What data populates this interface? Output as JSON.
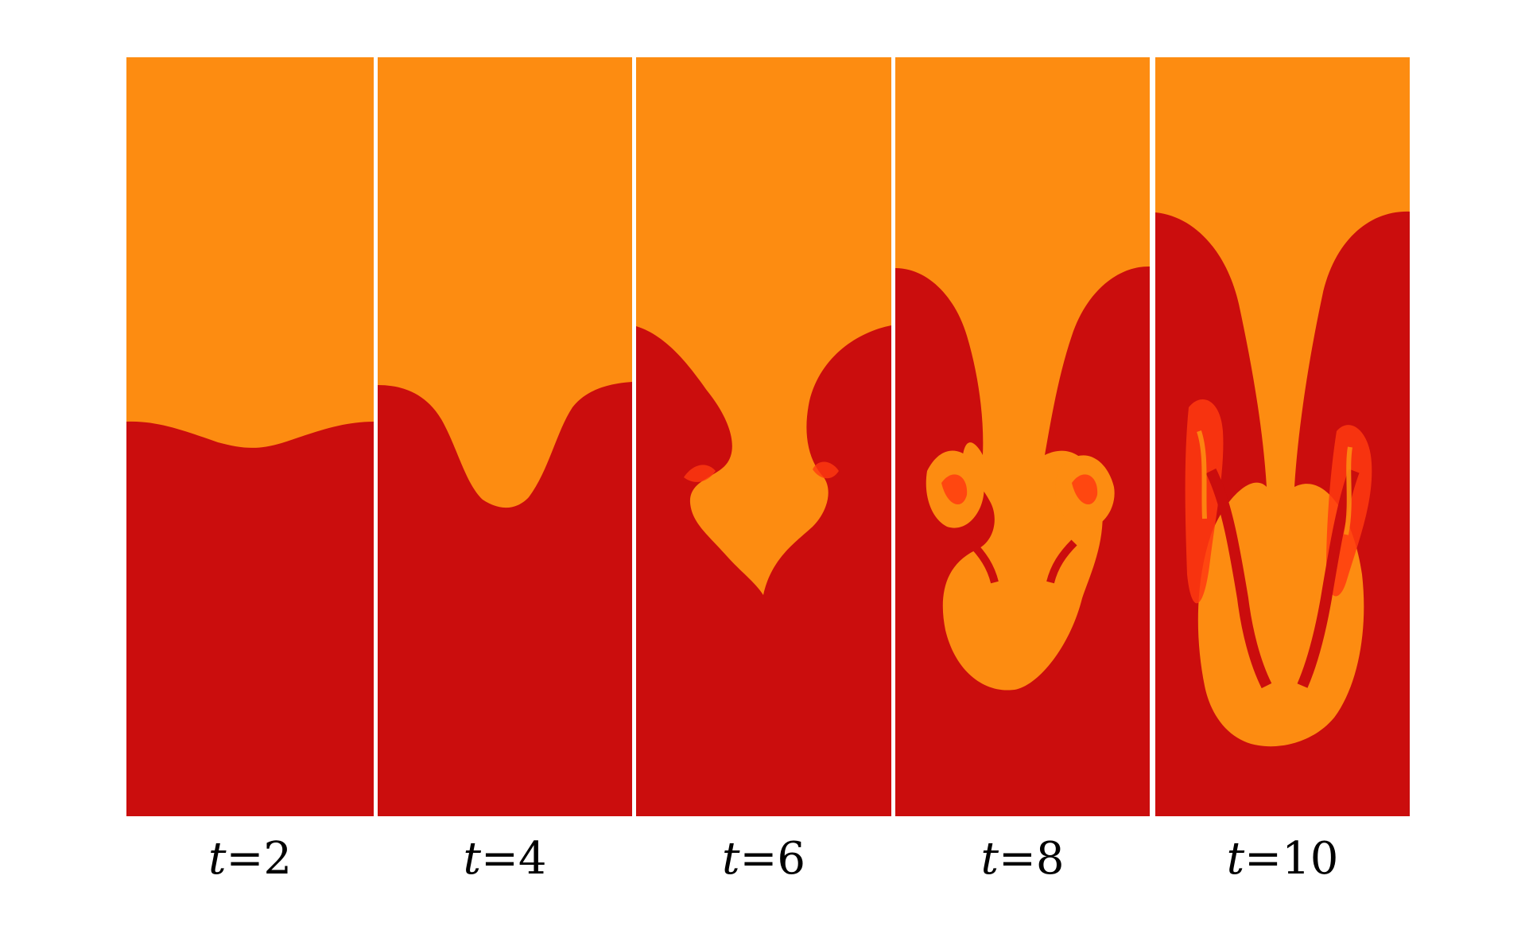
{
  "colors": {
    "light_fluid": "#fd8c11",
    "heavy_fluid": "#cb0d0d",
    "mixing_bright": "#ff3b10",
    "background": "#ffffff"
  },
  "panels": [
    {
      "variable": "t",
      "equals": "=",
      "value": "2",
      "icon": "fluid-interface-image"
    },
    {
      "variable": "t",
      "equals": "=",
      "value": "4",
      "icon": "fluid-interface-image"
    },
    {
      "variable": "t",
      "equals": "=",
      "value": "6",
      "icon": "fluid-interface-image"
    },
    {
      "variable": "t",
      "equals": "=",
      "value": "8",
      "icon": "fluid-interface-image"
    },
    {
      "variable": "t",
      "equals": "=",
      "value": "10",
      "icon": "fluid-interface-image"
    }
  ]
}
